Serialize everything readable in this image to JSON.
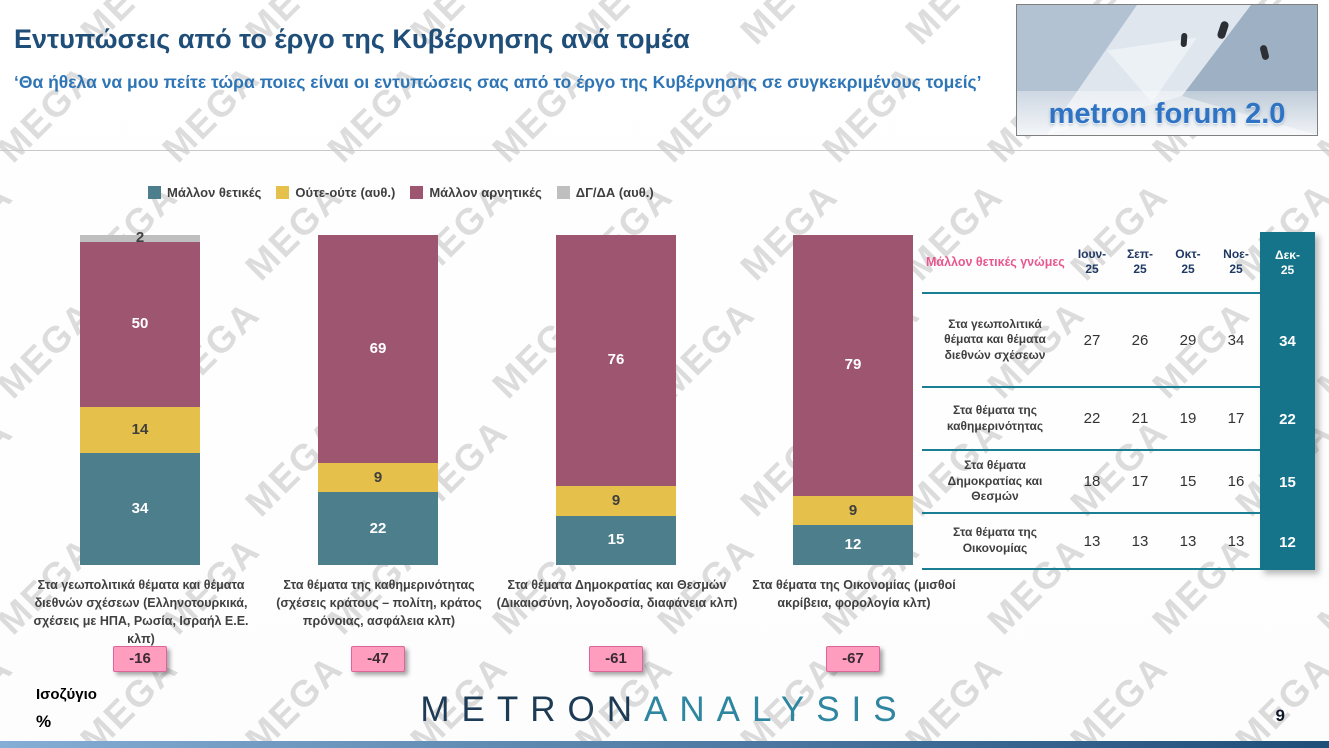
{
  "watermark": "MEGA",
  "header": {
    "title": "Εντυπώσεις από το έργο της Κυβέρνησης ανά τομέα",
    "subtitle": "‘Θα ήθελα να μου πείτε τώρα ποιες είναι οι εντυπώσεις σας από το έργο της Κυβέρνησης σε συγκεκριμένους τομείς’",
    "brand": "metron forum 2.0"
  },
  "chart_data": {
    "type": "bar",
    "stacked": true,
    "unit": "%",
    "ylim": [
      0,
      100
    ],
    "legend_position": "top",
    "categories": [
      "Στα γεωπολιτικά θέματα και θέματα διεθνών σχέσεων (Ελληνοτουρκικά, σχέσεις με ΗΠΑ, Ρωσία, Ισραήλ Ε.Ε. κλπ)",
      "Στα θέματα της καθημερινότητας (σχέσεις κράτους – πολίτη, κράτος πρόνοιας, ασφάλεια κλπ)",
      "Στα θέματα Δημοκρατίας και Θεσμών (Δικαιοσύνη, λογοδοσία, διαφάνεια κλπ)",
      "Στα θέματα της Οικονομίας (μισθοί ακρίβεια, φορολογία κλπ)"
    ],
    "series": [
      {
        "name": "Μάλλον θετικές",
        "color": "#4d7e8c",
        "text_color": "#ffffff",
        "values": [
          34,
          22,
          15,
          12
        ]
      },
      {
        "name": "Ούτε-ούτε  (αυθ.)",
        "color": "#e5c04a",
        "text_color": "#3f3f3f",
        "values": [
          14,
          9,
          9,
          9
        ]
      },
      {
        "name": "Μάλλον αρνητικές",
        "color": "#9e5570",
        "text_color": "#ffffff",
        "values": [
          50,
          69,
          76,
          79
        ]
      },
      {
        "name": "ΔΓ/ΔΑ (αυθ.)",
        "color": "#bfbfbf",
        "text_color": "#404040",
        "values": [
          2,
          0,
          0,
          0
        ]
      }
    ],
    "balance": {
      "label": "Ισοζύγιο",
      "values": [
        -16,
        -47,
        -61,
        -67
      ]
    }
  },
  "table": {
    "title": "Μάλλον θετικές γνώμες",
    "columns": [
      "Ιουν-25",
      "Σεπ-25",
      "Οκτ-25",
      "Νοε-25",
      "Δεκ-25"
    ],
    "highlight_column": "Δεκ-25",
    "rows": [
      {
        "label": "Στα γεωπολιτικά θέματα και θέματα διεθνών σχέσεων",
        "values": [
          27,
          26,
          29,
          34,
          34
        ]
      },
      {
        "label": "Στα θέματα της καθημερινότητας",
        "values": [
          22,
          21,
          19,
          17,
          22
        ]
      },
      {
        "label": "Στα θέματα Δημοκρατίας και Θεσμών",
        "values": [
          18,
          17,
          15,
          16,
          15
        ]
      },
      {
        "label": "Στα θέματα της Οικονομίας",
        "values": [
          13,
          13,
          13,
          13,
          12
        ]
      }
    ]
  },
  "footer": {
    "logo_primary": "METRON",
    "logo_secondary": "ANALYSIS",
    "page_number": "9"
  },
  "colors": {
    "title": "#1f4e79",
    "subtitle": "#2e75b6",
    "table_highlight": "#15738a",
    "table_line": "#1a7f95",
    "table_title": "#e8578f",
    "table_header": "#1f3864",
    "balance_badge_bg": "#ff9dbe",
    "balance_badge_border": "#e0649a"
  }
}
